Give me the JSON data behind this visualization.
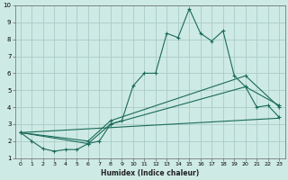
{
  "title": "",
  "xlabel": "Humidex (Indice chaleur)",
  "background_color": "#ceeae4",
  "grid_color": "#aaccc8",
  "line_color": "#1a6b5a",
  "xlim": [
    -0.5,
    23.5
  ],
  "ylim": [
    1,
    10
  ],
  "xticks": [
    0,
    1,
    2,
    3,
    4,
    5,
    6,
    7,
    8,
    9,
    10,
    11,
    12,
    13,
    14,
    15,
    16,
    17,
    18,
    19,
    20,
    21,
    22,
    23
  ],
  "yticks": [
    1,
    2,
    3,
    4,
    5,
    6,
    7,
    8,
    9,
    10
  ],
  "series1_x": [
    0,
    1,
    2,
    3,
    4,
    5,
    6,
    7,
    8,
    9,
    10,
    11,
    12,
    13,
    14,
    15,
    16,
    17,
    18,
    19,
    20,
    21,
    22,
    23
  ],
  "series1_y": [
    2.5,
    2.0,
    1.55,
    1.4,
    1.5,
    1.5,
    1.85,
    2.0,
    3.0,
    3.2,
    5.25,
    6.0,
    6.0,
    8.35,
    8.1,
    9.8,
    8.35,
    7.9,
    8.5,
    5.85,
    5.2,
    4.0,
    4.1,
    3.4
  ],
  "series2_x": [
    0,
    23
  ],
  "series2_y": [
    2.5,
    3.35
  ],
  "series3_x": [
    0,
    6,
    8,
    20,
    23
  ],
  "series3_y": [
    2.5,
    1.85,
    3.0,
    5.2,
    4.1
  ],
  "series4_x": [
    0,
    6,
    8,
    20,
    23
  ],
  "series4_y": [
    2.5,
    2.0,
    3.2,
    5.85,
    4.0
  ]
}
